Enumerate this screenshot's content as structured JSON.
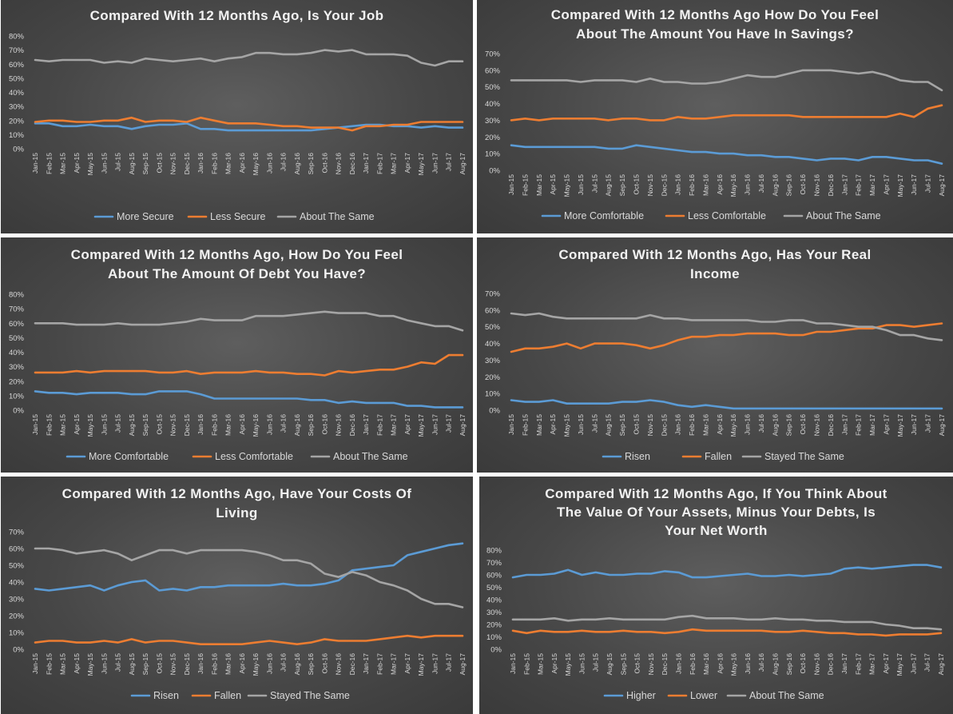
{
  "months": [
    "Jan-15",
    "Feb-15",
    "Mar-15",
    "Apr-15",
    "May-15",
    "Jun-15",
    "Jul-15",
    "Aug-15",
    "Sep-15",
    "Oct-15",
    "Nov-15",
    "Dec-15",
    "Jan-16",
    "Feb-16",
    "Mar-16",
    "Apr-16",
    "May-16",
    "Jun-16",
    "Jul-16",
    "Aug-16",
    "Sep-16",
    "Oct-16",
    "Nov-16",
    "Dec-16",
    "Jan-17",
    "Feb-17",
    "Mar-17",
    "Apr-17",
    "May-17",
    "Jun-17",
    "Jul-17",
    "Aug-17"
  ],
  "colors": {
    "blue": "#5b9bd5",
    "orange": "#ed7d31",
    "gray": "#a5a5a5"
  },
  "chart_data": [
    {
      "type": "line",
      "title_lines": [
        "Compared With 12 Months Ago, Is Your Job"
      ],
      "ylim": [
        0,
        80
      ],
      "yticks": [
        "0%",
        "10%",
        "20%",
        "30%",
        "40%",
        "50%",
        "60%",
        "70%",
        "80%"
      ],
      "legend_position": "bottom",
      "series": [
        {
          "name": "More Secure",
          "color": "blue",
          "values": [
            18,
            18,
            16,
            16,
            17,
            16,
            16,
            14,
            16,
            17,
            17,
            18,
            14,
            14,
            13,
            13,
            13,
            13,
            13,
            13,
            13,
            14,
            15,
            16,
            17,
            17,
            16,
            16,
            15,
            16,
            15,
            15
          ]
        },
        {
          "name": "Less Secure",
          "color": "orange",
          "values": [
            19,
            20,
            20,
            19,
            19,
            20,
            20,
            22,
            19,
            20,
            20,
            19,
            22,
            20,
            18,
            18,
            18,
            17,
            16,
            16,
            15,
            15,
            15,
            13,
            16,
            16,
            17,
            17,
            19,
            19,
            19,
            19
          ]
        },
        {
          "name": "About The Same",
          "color": "gray",
          "values": [
            63,
            62,
            63,
            63,
            63,
            61,
            62,
            61,
            64,
            63,
            62,
            63,
            64,
            62,
            64,
            65,
            68,
            68,
            67,
            67,
            68,
            70,
            69,
            70,
            67,
            67,
            67,
            66,
            61,
            59,
            62,
            62
          ]
        }
      ]
    },
    {
      "type": "line",
      "title_lines": [
        "Compared With 12 Months Ago How Do You Feel",
        "About The Amount You Have In Savings?"
      ],
      "ylim": [
        0,
        70
      ],
      "yticks": [
        "0%",
        "10%",
        "20%",
        "30%",
        "40%",
        "50%",
        "60%",
        "70%"
      ],
      "legend_position": "bottom",
      "series": [
        {
          "name": "More Comfortable",
          "color": "blue",
          "values": [
            15,
            14,
            14,
            14,
            14,
            14,
            14,
            13,
            13,
            15,
            14,
            13,
            12,
            11,
            11,
            10,
            10,
            9,
            9,
            8,
            8,
            7,
            6,
            7,
            7,
            6,
            8,
            8,
            7,
            6,
            6,
            4
          ]
        },
        {
          "name": "Less Comfortable",
          "color": "orange",
          "values": [
            30,
            31,
            30,
            31,
            31,
            31,
            31,
            30,
            31,
            31,
            30,
            30,
            32,
            31,
            31,
            32,
            33,
            33,
            33,
            33,
            33,
            32,
            32,
            32,
            32,
            32,
            32,
            32,
            34,
            32,
            37,
            39
          ]
        },
        {
          "name": "About The Same",
          "color": "gray",
          "values": [
            54,
            54,
            54,
            54,
            54,
            53,
            54,
            54,
            54,
            53,
            55,
            53,
            53,
            52,
            52,
            53,
            55,
            57,
            56,
            56,
            58,
            60,
            60,
            60,
            59,
            58,
            59,
            57,
            54,
            53,
            53,
            48
          ]
        }
      ]
    },
    {
      "type": "line",
      "title_lines": [
        "Compared With 12 Months Ago, How Do You Feel",
        "About The Amount Of Debt You Have?"
      ],
      "ylim": [
        0,
        80
      ],
      "yticks": [
        "0%",
        "10%",
        "20%",
        "30%",
        "40%",
        "50%",
        "60%",
        "70%",
        "80%"
      ],
      "legend_position": "bottom",
      "series": [
        {
          "name": "More Comfortable",
          "color": "blue",
          "values": [
            13,
            12,
            12,
            11,
            12,
            12,
            12,
            11,
            11,
            13,
            13,
            13,
            11,
            8,
            8,
            8,
            8,
            8,
            8,
            8,
            7,
            7,
            5,
            6,
            5,
            5,
            5,
            3,
            3,
            2,
            2,
            2
          ]
        },
        {
          "name": "Less Comfortable",
          "color": "orange",
          "values": [
            26,
            26,
            26,
            27,
            26,
            27,
            27,
            27,
            27,
            26,
            26,
            27,
            25,
            26,
            26,
            26,
            27,
            26,
            26,
            25,
            25,
            24,
            27,
            26,
            27,
            28,
            28,
            30,
            33,
            32,
            38,
            38
          ]
        },
        {
          "name": "About The Same",
          "color": "gray",
          "values": [
            60,
            60,
            60,
            59,
            59,
            59,
            60,
            59,
            59,
            59,
            60,
            61,
            63,
            62,
            62,
            62,
            65,
            65,
            65,
            66,
            67,
            68,
            67,
            67,
            67,
            65,
            65,
            62,
            60,
            58,
            58,
            55
          ]
        }
      ]
    },
    {
      "type": "line",
      "title_lines": [
        "Compared With 12 Months Ago, Has Your Real",
        "Income"
      ],
      "ylim": [
        0,
        70
      ],
      "yticks": [
        "0%",
        "10%",
        "20%",
        "30%",
        "40%",
        "50%",
        "60%",
        "70%"
      ],
      "legend_position": "bottom",
      "series": [
        {
          "name": "Risen",
          "color": "blue",
          "values": [
            6,
            5,
            5,
            6,
            4,
            4,
            4,
            4,
            5,
            5,
            6,
            5,
            3,
            2,
            3,
            2,
            1,
            1,
            1,
            1,
            1,
            1,
            1,
            1,
            1,
            1,
            1,
            1,
            1,
            1,
            1,
            1
          ]
        },
        {
          "name": "Fallen",
          "color": "orange",
          "values": [
            35,
            37,
            37,
            38,
            40,
            37,
            40,
            40,
            40,
            39,
            37,
            39,
            42,
            44,
            44,
            45,
            45,
            46,
            46,
            46,
            45,
            45,
            47,
            47,
            48,
            49,
            49,
            51,
            51,
            50,
            51,
            52
          ]
        },
        {
          "name": "Stayed The Same",
          "color": "gray",
          "values": [
            58,
            57,
            58,
            56,
            55,
            55,
            55,
            55,
            55,
            55,
            57,
            55,
            55,
            54,
            54,
            54,
            54,
            54,
            53,
            53,
            54,
            54,
            52,
            52,
            51,
            50,
            50,
            48,
            45,
            45,
            43,
            42
          ]
        }
      ]
    },
    {
      "type": "line",
      "title_lines": [
        "Compared With 12 Months Ago, Have Your Costs Of",
        "Living"
      ],
      "ylim": [
        0,
        70
      ],
      "yticks": [
        "0%",
        "10%",
        "20%",
        "30%",
        "40%",
        "50%",
        "60%",
        "70%"
      ],
      "legend_position": "bottom",
      "series": [
        {
          "name": "Risen",
          "color": "blue",
          "values": [
            36,
            35,
            36,
            37,
            38,
            35,
            38,
            40,
            41,
            35,
            36,
            35,
            37,
            37,
            38,
            38,
            38,
            38,
            39,
            38,
            38,
            39,
            41,
            47,
            48,
            49,
            50,
            56,
            58,
            60,
            62,
            63
          ]
        },
        {
          "name": "Fallen",
          "color": "orange",
          "values": [
            4,
            5,
            5,
            4,
            4,
            5,
            4,
            6,
            4,
            5,
            5,
            4,
            3,
            3,
            3,
            3,
            4,
            5,
            4,
            3,
            4,
            6,
            5,
            5,
            5,
            6,
            7,
            8,
            7,
            8,
            8,
            8
          ]
        },
        {
          "name": "Stayed The Same",
          "color": "gray",
          "values": [
            60,
            60,
            59,
            57,
            58,
            59,
            57,
            53,
            56,
            59,
            59,
            57,
            59,
            59,
            59,
            59,
            58,
            56,
            53,
            53,
            51,
            45,
            43,
            46,
            44,
            40,
            38,
            35,
            30,
            27,
            27,
            25
          ]
        }
      ]
    },
    {
      "type": "line",
      "title_lines": [
        "Compared With 12 Months Ago, If You Think About",
        "The Value Of Your Assets, Minus Your Debts, Is",
        "Your Net Worth"
      ],
      "ylim": [
        0,
        80
      ],
      "yticks": [
        "0%",
        "10%",
        "20%",
        "30%",
        "40%",
        "50%",
        "60%",
        "70%",
        "80%"
      ],
      "legend_position": "bottom",
      "series": [
        {
          "name": "Higher",
          "color": "blue",
          "values": [
            58,
            60,
            60,
            61,
            64,
            60,
            62,
            60,
            60,
            61,
            61,
            63,
            62,
            58,
            58,
            59,
            60,
            61,
            59,
            59,
            60,
            59,
            60,
            61,
            65,
            66,
            65,
            66,
            67,
            68,
            68,
            66
          ]
        },
        {
          "name": "Lower",
          "color": "orange",
          "values": [
            15,
            13,
            15,
            14,
            14,
            15,
            14,
            14,
            15,
            14,
            14,
            13,
            14,
            16,
            15,
            15,
            15,
            15,
            15,
            14,
            14,
            15,
            14,
            13,
            13,
            12,
            12,
            11,
            12,
            12,
            12,
            13
          ]
        },
        {
          "name": "About The Same",
          "color": "gray",
          "values": [
            24,
            24,
            24,
            25,
            23,
            24,
            24,
            25,
            24,
            24,
            24,
            24,
            26,
            27,
            25,
            25,
            25,
            24,
            24,
            25,
            24,
            24,
            23,
            23,
            22,
            22,
            22,
            20,
            19,
            17,
            17,
            16
          ]
        }
      ]
    }
  ]
}
